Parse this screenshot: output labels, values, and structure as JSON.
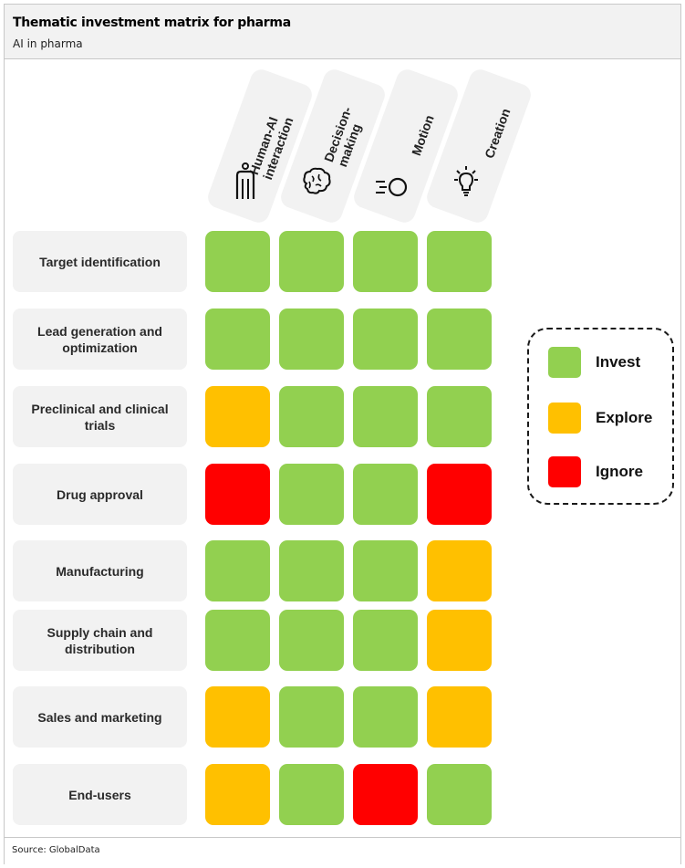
{
  "header": {
    "title": "Thematic investment matrix for pharma",
    "subtitle": "AI in pharma"
  },
  "footer": {
    "source": "Source: GlobalData"
  },
  "colors": {
    "invest": "#92d050",
    "explore": "#ffc000",
    "ignore": "#ff0000"
  },
  "columns": [
    {
      "label": "Human-AI\ninteraction",
      "icon": "human-figure-icon"
    },
    {
      "label": "Decision-\nmaking",
      "icon": "brain-icon"
    },
    {
      "label": "Motion",
      "icon": "motion-icon"
    },
    {
      "label": "Creation",
      "icon": "lightbulb-icon"
    }
  ],
  "rows": [
    {
      "label": "Target identification",
      "values": [
        "invest",
        "invest",
        "invest",
        "invest"
      ]
    },
    {
      "label": "Lead generation and optimization",
      "values": [
        "invest",
        "invest",
        "invest",
        "invest"
      ]
    },
    {
      "label": "Preclinical and clinical trials",
      "values": [
        "explore",
        "invest",
        "invest",
        "invest"
      ]
    },
    {
      "label": "Drug approval",
      "values": [
        "ignore",
        "invest",
        "invest",
        "ignore"
      ]
    },
    {
      "label": "Manufacturing",
      "values": [
        "invest",
        "invest",
        "invest",
        "explore"
      ]
    },
    {
      "label": "Supply chain and distribution",
      "values": [
        "invest",
        "invest",
        "invest",
        "explore"
      ]
    },
    {
      "label": "Sales and marketing",
      "values": [
        "explore",
        "invest",
        "invest",
        "explore"
      ]
    },
    {
      "label": "End-users",
      "values": [
        "explore",
        "invest",
        "ignore",
        "invest"
      ]
    }
  ],
  "legend": [
    {
      "key": "invest",
      "label": "Invest"
    },
    {
      "key": "explore",
      "label": "Explore"
    },
    {
      "key": "ignore",
      "label": "Ignore"
    }
  ]
}
